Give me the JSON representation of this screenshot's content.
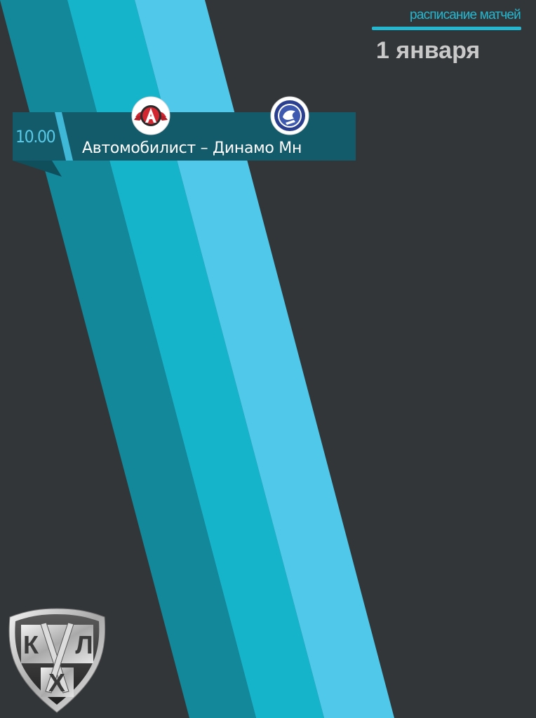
{
  "header": {
    "label": "расписание матчей",
    "date": "1 января"
  },
  "matches": [
    {
      "time": "10.00",
      "teams": "Автомобилист – Динамо Мн",
      "home_logo_icon": "avtomobilist-logo-icon",
      "away_logo_icon": "dinamo-minsk-logo-icon"
    }
  ],
  "league_logo": {
    "icon": "khl-logo-icon",
    "letters": [
      "К",
      "Л",
      "Х"
    ]
  },
  "colors": {
    "background": "#333638",
    "stripe_dark": "#13889a",
    "stripe_mid": "#15b4cb",
    "stripe_light": "#4fc8ea",
    "bar": "#135b6a",
    "accent": "#22b8d2"
  }
}
